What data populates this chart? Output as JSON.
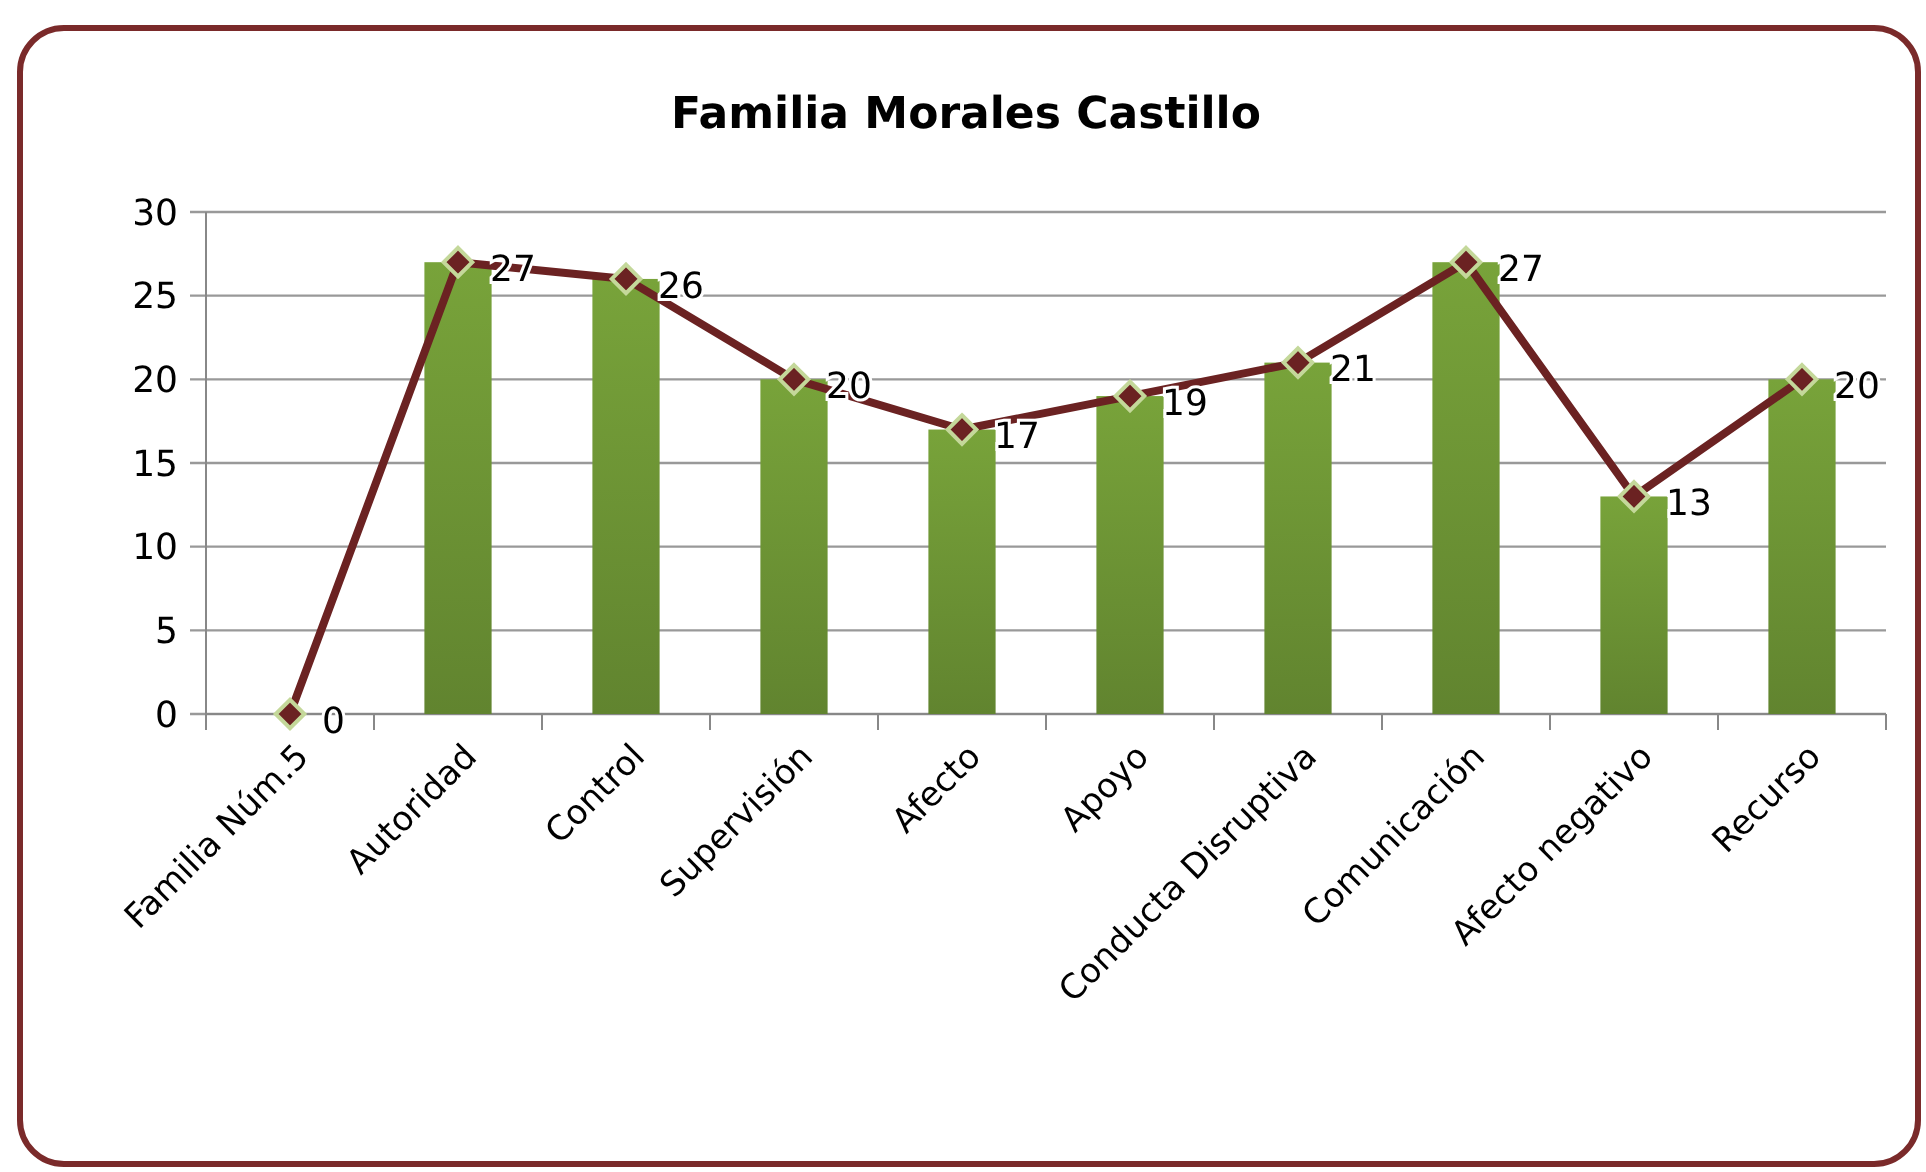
{
  "chart_data": {
    "type": "bar",
    "title": "Familia Morales Castillo",
    "categories": [
      "Familia Núm.5",
      "Autoridad",
      "Control",
      "Supervisión",
      "Afecto",
      "Apoyo",
      "Conducta Disruptiva",
      "Comunicación",
      "Afecto negativo",
      "Recurso"
    ],
    "series": [
      {
        "color": "#78a33a",
        "values": [
          0,
          27,
          26,
          20,
          17,
          19,
          21,
          27,
          13,
          20
        ]
      },
      {
        "type": "line",
        "color": "#6b2222",
        "marker": "diamond",
        "values": [
          0,
          27,
          26,
          20,
          17,
          19,
          21,
          27,
          13,
          20
        ],
        "value_labels": [
          "0",
          "27",
          "26",
          "20",
          "17",
          "19",
          "21",
          "27",
          "13",
          "20"
        ]
      }
    ],
    "ylim": [
      0,
      30
    ],
    "yticks": [
      0,
      5,
      10,
      15,
      20,
      25,
      30
    ],
    "grid": "y"
  }
}
